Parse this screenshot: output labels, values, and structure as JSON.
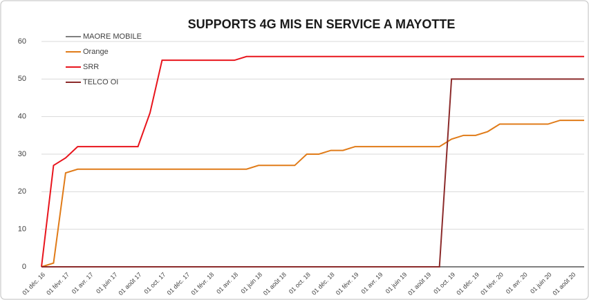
{
  "chart_data": {
    "type": "line",
    "title": "SUPPORTS 4G MIS EN SERVICE  A MAYOTTE",
    "categories": [
      "01 déc. 16",
      null,
      "01 févr. 17",
      null,
      "01 avr. 17",
      null,
      "01 juin 17",
      null,
      "01 août 17",
      null,
      "01 oct. 17",
      null,
      "01 déc. 17",
      null,
      "01 févr. 18",
      null,
      "01 avr. 18",
      null,
      "01 juin 18",
      null,
      "01 août 18",
      null,
      "01 oct. 18",
      null,
      "01 déc. 18",
      null,
      "01 févr. 19",
      null,
      "01 avr. 19",
      null,
      "01 juin 19",
      null,
      "01 août 19",
      null,
      "01 oct. 19",
      null,
      "01 déc. 19",
      null,
      "01 févr. 20",
      null,
      "01 avr. 20",
      null,
      "01 juin 20",
      null,
      "01 août 20",
      null
    ],
    "series": [
      {
        "name": "MAORE MOBILE",
        "color": "#7f7f7f",
        "values": [
          0,
          0,
          0,
          0,
          0,
          0,
          0,
          0,
          0,
          0,
          0,
          0,
          0,
          0,
          0,
          0,
          0,
          0,
          0,
          0,
          0,
          0,
          0,
          0,
          0,
          0,
          0,
          0,
          0,
          0,
          0,
          0,
          0,
          0,
          0,
          0,
          0,
          0,
          0,
          0,
          0,
          0,
          0,
          0,
          0,
          0
        ]
      },
      {
        "name": "Orange",
        "color": "#e07b18",
        "values": [
          0,
          1,
          25,
          26,
          26,
          26,
          26,
          26,
          26,
          26,
          26,
          26,
          26,
          26,
          26,
          26,
          26,
          26,
          27,
          27,
          27,
          27,
          30,
          30,
          31,
          31,
          32,
          32,
          32,
          32,
          32,
          32,
          32,
          32,
          34,
          35,
          35,
          36,
          38,
          38,
          38,
          38,
          38,
          39,
          39,
          39
        ]
      },
      {
        "name": "SRR",
        "color": "#e8141c",
        "values": [
          0,
          27,
          29,
          32,
          32,
          32,
          32,
          32,
          32,
          41,
          55,
          55,
          55,
          55,
          55,
          55,
          55,
          56,
          56,
          56,
          56,
          56,
          56,
          56,
          56,
          56,
          56,
          56,
          56,
          56,
          56,
          56,
          56,
          56,
          56,
          56,
          56,
          56,
          56,
          56,
          56,
          56,
          56,
          56,
          56,
          56
        ]
      },
      {
        "name": "TELCO OI",
        "color": "#8b2a2a",
        "values": [
          0,
          0,
          0,
          0,
          0,
          0,
          0,
          0,
          0,
          0,
          0,
          0,
          0,
          0,
          0,
          0,
          0,
          0,
          0,
          0,
          0,
          0,
          0,
          0,
          0,
          0,
          0,
          0,
          0,
          0,
          0,
          0,
          0,
          0,
          50,
          50,
          50,
          50,
          50,
          50,
          50,
          50,
          50,
          50,
          50,
          50
        ]
      }
    ],
    "ylim": [
      0,
      60
    ],
    "yticks": [
      0,
      10,
      20,
      30,
      40,
      50,
      60
    ],
    "grid": true,
    "legend": "top-left"
  }
}
